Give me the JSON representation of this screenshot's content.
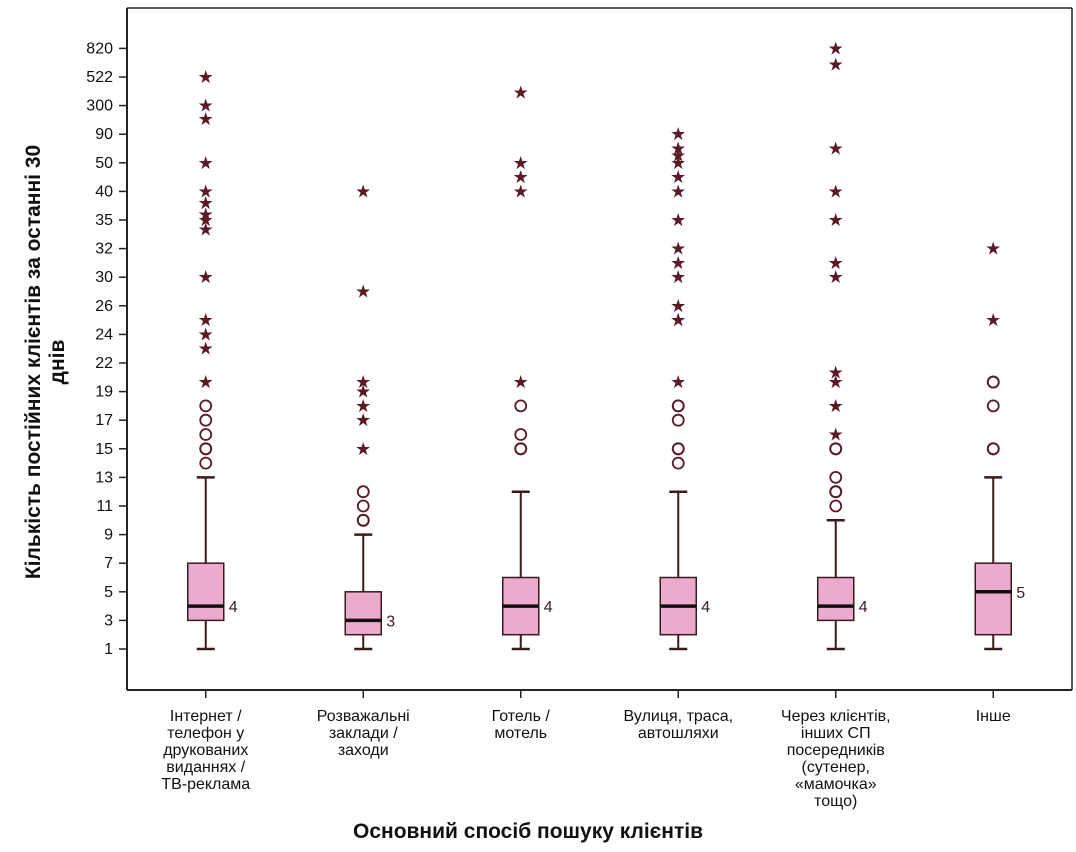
{
  "chart_data": {
    "type": "boxplot",
    "title": "",
    "xlabel": "Основний спосіб пошуку клієнтів",
    "ylabel": [
      "Кількість постійних клієнтів за останні 30",
      "днів"
    ],
    "y_ticks": [
      "1",
      "3",
      "5",
      "7",
      "9",
      "11",
      "13",
      "15",
      "17",
      "19",
      "22",
      "24",
      "26",
      "30",
      "32",
      "35",
      "40",
      "50",
      "90",
      "300",
      "522",
      "820"
    ],
    "grid": false,
    "colors": {
      "box_fill": "#ecaacd",
      "box_stroke": "#3a1a1a",
      "outlier": "#5a1a26",
      "axis": "#222222"
    },
    "categories": [
      {
        "label": [
          "Інтернет /",
          "телефон у",
          "друкованих",
          "виданнях /",
          "ТВ-реклама"
        ],
        "min": "1",
        "q1": "3",
        "median": "4",
        "q3": "7",
        "max": "13",
        "median_label": "4",
        "circles": [
          "14",
          "15",
          "15",
          "16",
          "17",
          "18"
        ],
        "stars": [
          "20",
          "23",
          "24",
          "25",
          "30",
          "34",
          "35",
          "36",
          "38",
          "40",
          "50",
          "200",
          "300",
          "522"
        ]
      },
      {
        "label": [
          "Розважальні",
          "заклади /",
          "заходи"
        ],
        "min": "1",
        "q1": "2",
        "median": "3",
        "q3": "5",
        "max": "9",
        "median_label": "3",
        "circles": [
          "10",
          "10",
          "11",
          "12"
        ],
        "stars": [
          "15",
          "17",
          "18",
          "19",
          "20",
          "28",
          "40"
        ]
      },
      {
        "label": [
          "Готель /",
          "мотель"
        ],
        "min": "1",
        "q1": "2",
        "median": "4",
        "q3": "6",
        "max": "12",
        "median_label": "4",
        "circles": [
          "15",
          "15",
          "16",
          "18"
        ],
        "stars": [
          "20",
          "40",
          "45",
          "50",
          "400"
        ]
      },
      {
        "label": [
          "Вулиця, траса,",
          "автошляхи"
        ],
        "min": "1",
        "q1": "2",
        "median": "4",
        "q3": "6",
        "max": "12",
        "median_label": "4",
        "circles": [
          "14",
          "15",
          "15",
          "17",
          "18",
          "18"
        ],
        "stars": [
          "20",
          "25",
          "25",
          "26",
          "30",
          "31",
          "32",
          "35",
          "40",
          "45",
          "50",
          "60",
          "70",
          "90"
        ]
      },
      {
        "label": [
          "Через клієнтів,",
          "інших СП",
          "посередників",
          "(сутенер,",
          "«мамочка»",
          "тощо)"
        ],
        "min": "1",
        "q1": "3",
        "median": "4",
        "q3": "6",
        "max": "10",
        "median_label": "4",
        "circles": [
          "11",
          "12",
          "12",
          "13",
          "15",
          "15"
        ],
        "stars": [
          "16",
          "18",
          "20",
          "21",
          "30",
          "31",
          "35",
          "40",
          "70",
          "650",
          "820"
        ]
      },
      {
        "label": [
          "Інше"
        ],
        "min": "1",
        "q1": "2",
        "median": "5",
        "q3": "7",
        "max": "13",
        "median_label": "5",
        "circles": [
          "15",
          "15",
          "18",
          "20",
          "20"
        ],
        "stars": [
          "25",
          "32"
        ]
      }
    ]
  }
}
